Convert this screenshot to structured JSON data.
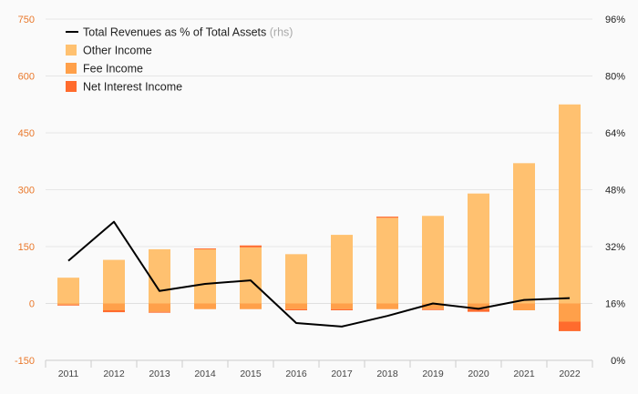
{
  "chart_data": {
    "type": "bar",
    "categories": [
      "2011",
      "2012",
      "2013",
      "2014",
      "2015",
      "2016",
      "2017",
      "2018",
      "2019",
      "2020",
      "2021",
      "2022"
    ],
    "y_left": {
      "ticks": [
        "750",
        "600",
        "450",
        "300",
        "150",
        "0",
        "-150"
      ],
      "range": [
        -150,
        750
      ]
    },
    "y_right": {
      "ticks": [
        "96%",
        "80%",
        "64%",
        "48%",
        "32%",
        "16%",
        "0%"
      ],
      "range": [
        0,
        96
      ]
    },
    "grid": true,
    "legend_position": "top-left",
    "colors": {
      "other": "#ffc170",
      "fee": "#ffa04a",
      "nii": "#ff6b2d",
      "line": "#000000",
      "left_axis": "#e9782b"
    },
    "series": [
      {
        "name": "Other Income",
        "type": "bar",
        "values": [
          68,
          115,
          143,
          143,
          148,
          130,
          181,
          226,
          231,
          290,
          370,
          525
        ]
      },
      {
        "name": "Fee Income",
        "type": "bar",
        "values": [
          -3,
          -18,
          -22,
          -15,
          -15,
          -15,
          -15,
          -15,
          -15,
          -15,
          -18,
          -48
        ]
      },
      {
        "name": "Net Interest Income",
        "type": "bar",
        "values": [
          -2,
          -5,
          -2,
          2,
          5,
          -3,
          -3,
          3,
          -2,
          -7,
          0,
          -25
        ]
      },
      {
        "name": "Total Revenues as % of Total Assets",
        "suffix": "(rhs)",
        "type": "line",
        "axis": "right",
        "values": [
          28,
          39,
          19.5,
          21.5,
          22.5,
          10.5,
          9.5,
          12.5,
          16,
          14.5,
          17,
          17.5
        ]
      }
    ]
  }
}
